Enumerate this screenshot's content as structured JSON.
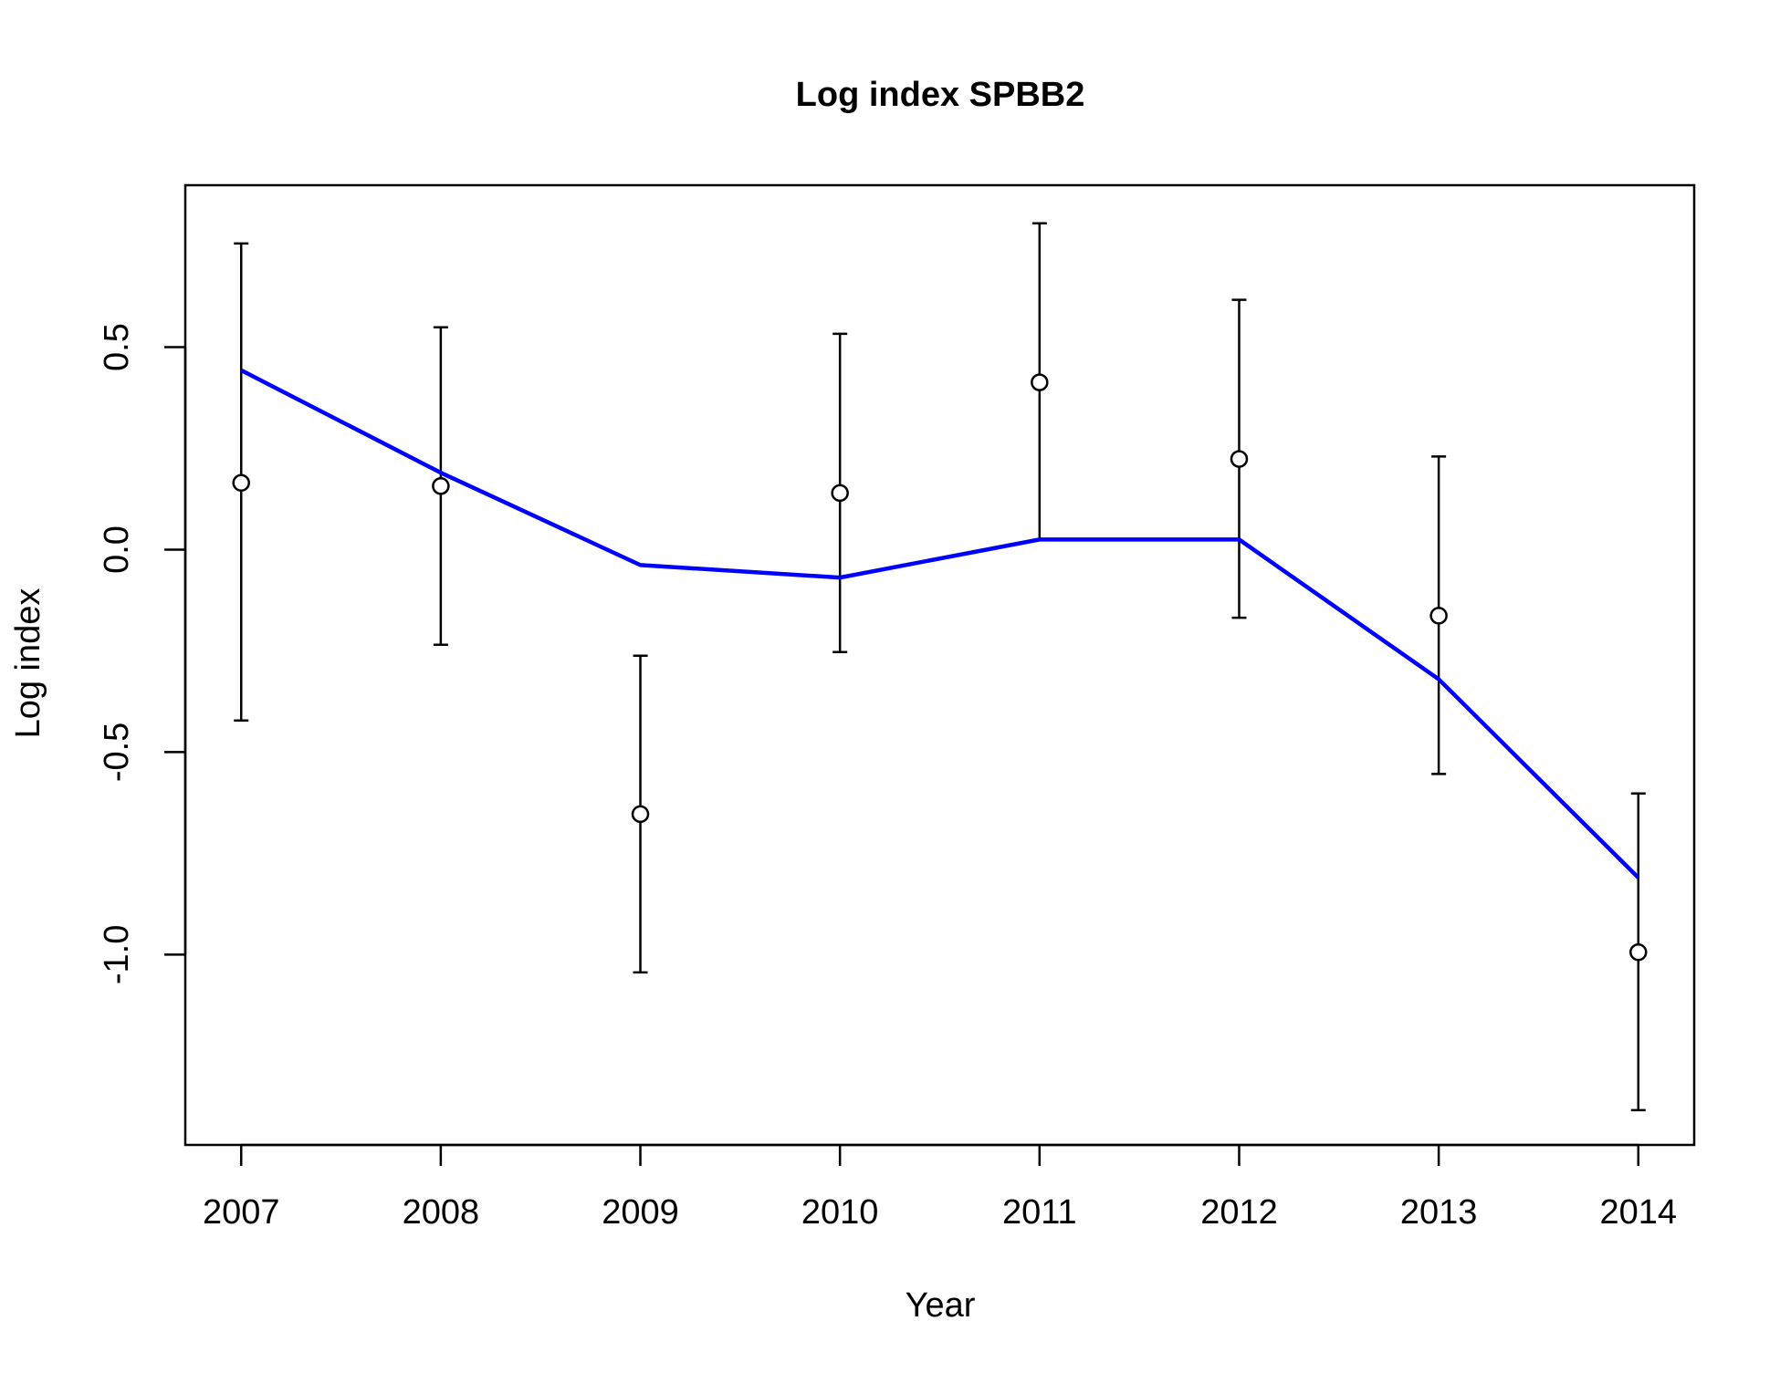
{
  "chart_data": {
    "type": "line",
    "title": "Log index SPBB2",
    "xlabel": "Year",
    "ylabel": "Log index",
    "x": [
      2007,
      2008,
      2009,
      2010,
      2011,
      2012,
      2013,
      2014
    ],
    "x_tick_labels": [
      "2007",
      "2008",
      "2009",
      "2010",
      "2011",
      "2012",
      "2013",
      "2014"
    ],
    "y_ticks": [
      -1.0,
      -0.5,
      0.0,
      0.5
    ],
    "y_tick_labels": [
      "-1.0",
      "-0.5",
      "0.0",
      "0.5"
    ],
    "xlim": [
      2006.72,
      2014.28
    ],
    "ylim": [
      -1.47,
      0.9
    ],
    "observed": {
      "values": [
        0.165,
        0.157,
        -0.653,
        0.14,
        0.413,
        0.224,
        -0.163,
        -0.994
      ],
      "lower": [
        -0.422,
        -0.235,
        -1.044,
        -0.253,
        0.024,
        -0.168,
        -0.554,
        -1.384
      ],
      "upper": [
        0.756,
        0.549,
        -0.262,
        0.533,
        0.806,
        0.617,
        0.23,
        -0.602
      ],
      "marker_color": "#000000"
    },
    "fitted": {
      "values": [
        0.443,
        0.19,
        -0.038,
        -0.069,
        0.025,
        0.025,
        -0.32,
        -0.81
      ],
      "color": "#0000FF"
    },
    "grid": false,
    "legend": "none"
  }
}
